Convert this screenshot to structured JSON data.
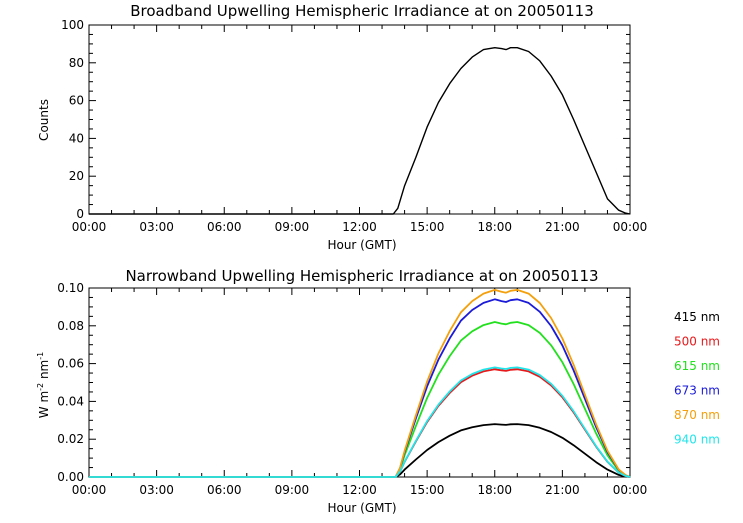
{
  "chart_data": [
    {
      "type": "line",
      "title": "Broadband Upwelling Hemispheric Irradiance at  on 20050113",
      "xlabel": "Hour (GMT)",
      "ylabel": "Counts",
      "xlim": [
        0,
        24
      ],
      "ylim": [
        0,
        100
      ],
      "x_ticks": [
        "00:00",
        "03:00",
        "06:00",
        "09:00",
        "12:00",
        "15:00",
        "18:00",
        "21:00",
        "00:00"
      ],
      "y_ticks": [
        "0",
        "20",
        "40",
        "60",
        "80",
        "100"
      ],
      "series": [
        {
          "color": "#000000",
          "x": [
            0,
            13.5,
            13.7,
            14.0,
            14.5,
            15.0,
            15.5,
            16.0,
            16.5,
            17.0,
            17.5,
            18.0,
            18.3,
            18.5,
            18.7,
            19.0,
            19.5,
            20.0,
            20.5,
            21.0,
            21.5,
            22.0,
            22.5,
            23.0,
            23.5,
            23.8,
            24.0
          ],
          "y": [
            0,
            0,
            3,
            15,
            30,
            46,
            59,
            69,
            77,
            83,
            87,
            88,
            87.5,
            87,
            88,
            88,
            86,
            81,
            73,
            63,
            50,
            36,
            22,
            8,
            2,
            0.5,
            0
          ]
        }
      ]
    },
    {
      "type": "line",
      "title": "Narrowband Upwelling Hemispheric Irradiance at  on 20050113",
      "xlabel": "Hour (GMT)",
      "ylabel_main": "W m",
      "ylabel_sup1": "-2",
      "ylabel_mid": " nm",
      "ylabel_sup2": "-1",
      "xlim": [
        0,
        24
      ],
      "ylim": [
        0,
        0.1
      ],
      "x_ticks": [
        "00:00",
        "03:00",
        "06:00",
        "09:00",
        "12:00",
        "15:00",
        "18:00",
        "21:00",
        "00:00"
      ],
      "y_ticks": [
        "0.00",
        "0.02",
        "0.04",
        "0.06",
        "0.08",
        "0.10"
      ],
      "shape_x": [
        0,
        13.6,
        13.8,
        14.0,
        14.5,
        15.0,
        15.5,
        16.0,
        16.5,
        17.0,
        17.5,
        18.0,
        18.3,
        18.5,
        18.7,
        19.0,
        19.5,
        20.0,
        20.5,
        21.0,
        21.5,
        22.0,
        22.5,
        23.0,
        23.5,
        23.8,
        24.0
      ],
      "shape_y": [
        0,
        0,
        0.05,
        0.14,
        0.33,
        0.51,
        0.66,
        0.78,
        0.88,
        0.94,
        0.98,
        1.0,
        0.99,
        0.985,
        0.995,
        1.0,
        0.98,
        0.93,
        0.85,
        0.74,
        0.6,
        0.44,
        0.28,
        0.14,
        0.04,
        0.01,
        0
      ],
      "series": [
        {
          "name": "415 nm",
          "color": "#000000",
          "peak": 0.028
        },
        {
          "name": "500 nm",
          "color": "#e8191b",
          "peak": 0.057
        },
        {
          "name": "615 nm",
          "color": "#22e01e",
          "peak": 0.082
        },
        {
          "name": "673 nm",
          "color": "#1a1ad8",
          "peak": 0.094
        },
        {
          "name": "870 nm",
          "color": "#f3a00c",
          "peak": 0.099
        },
        {
          "name": "940 nm",
          "color": "#1fe6ea",
          "peak": 0.058
        }
      ]
    }
  ]
}
